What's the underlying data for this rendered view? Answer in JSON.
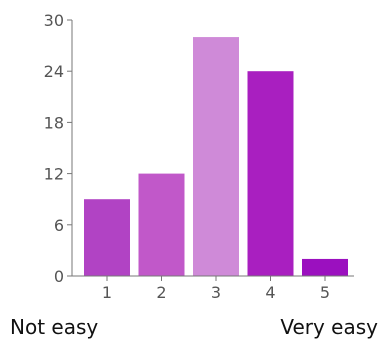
{
  "chart_data": {
    "type": "bar",
    "categories": [
      "1",
      "2",
      "3",
      "4",
      "5"
    ],
    "values": [
      9,
      12,
      28,
      24,
      2
    ],
    "colors": [
      "#b143c4",
      "#c158c9",
      "#cf8ad8",
      "#a91fc0",
      "#9b10bf"
    ],
    "ylim": [
      0,
      30
    ],
    "yticks": [
      "0",
      "6",
      "12",
      "18",
      "24",
      "30"
    ],
    "grid": false,
    "scale_labels": {
      "low": "Not easy",
      "high": "Very easy"
    }
  }
}
